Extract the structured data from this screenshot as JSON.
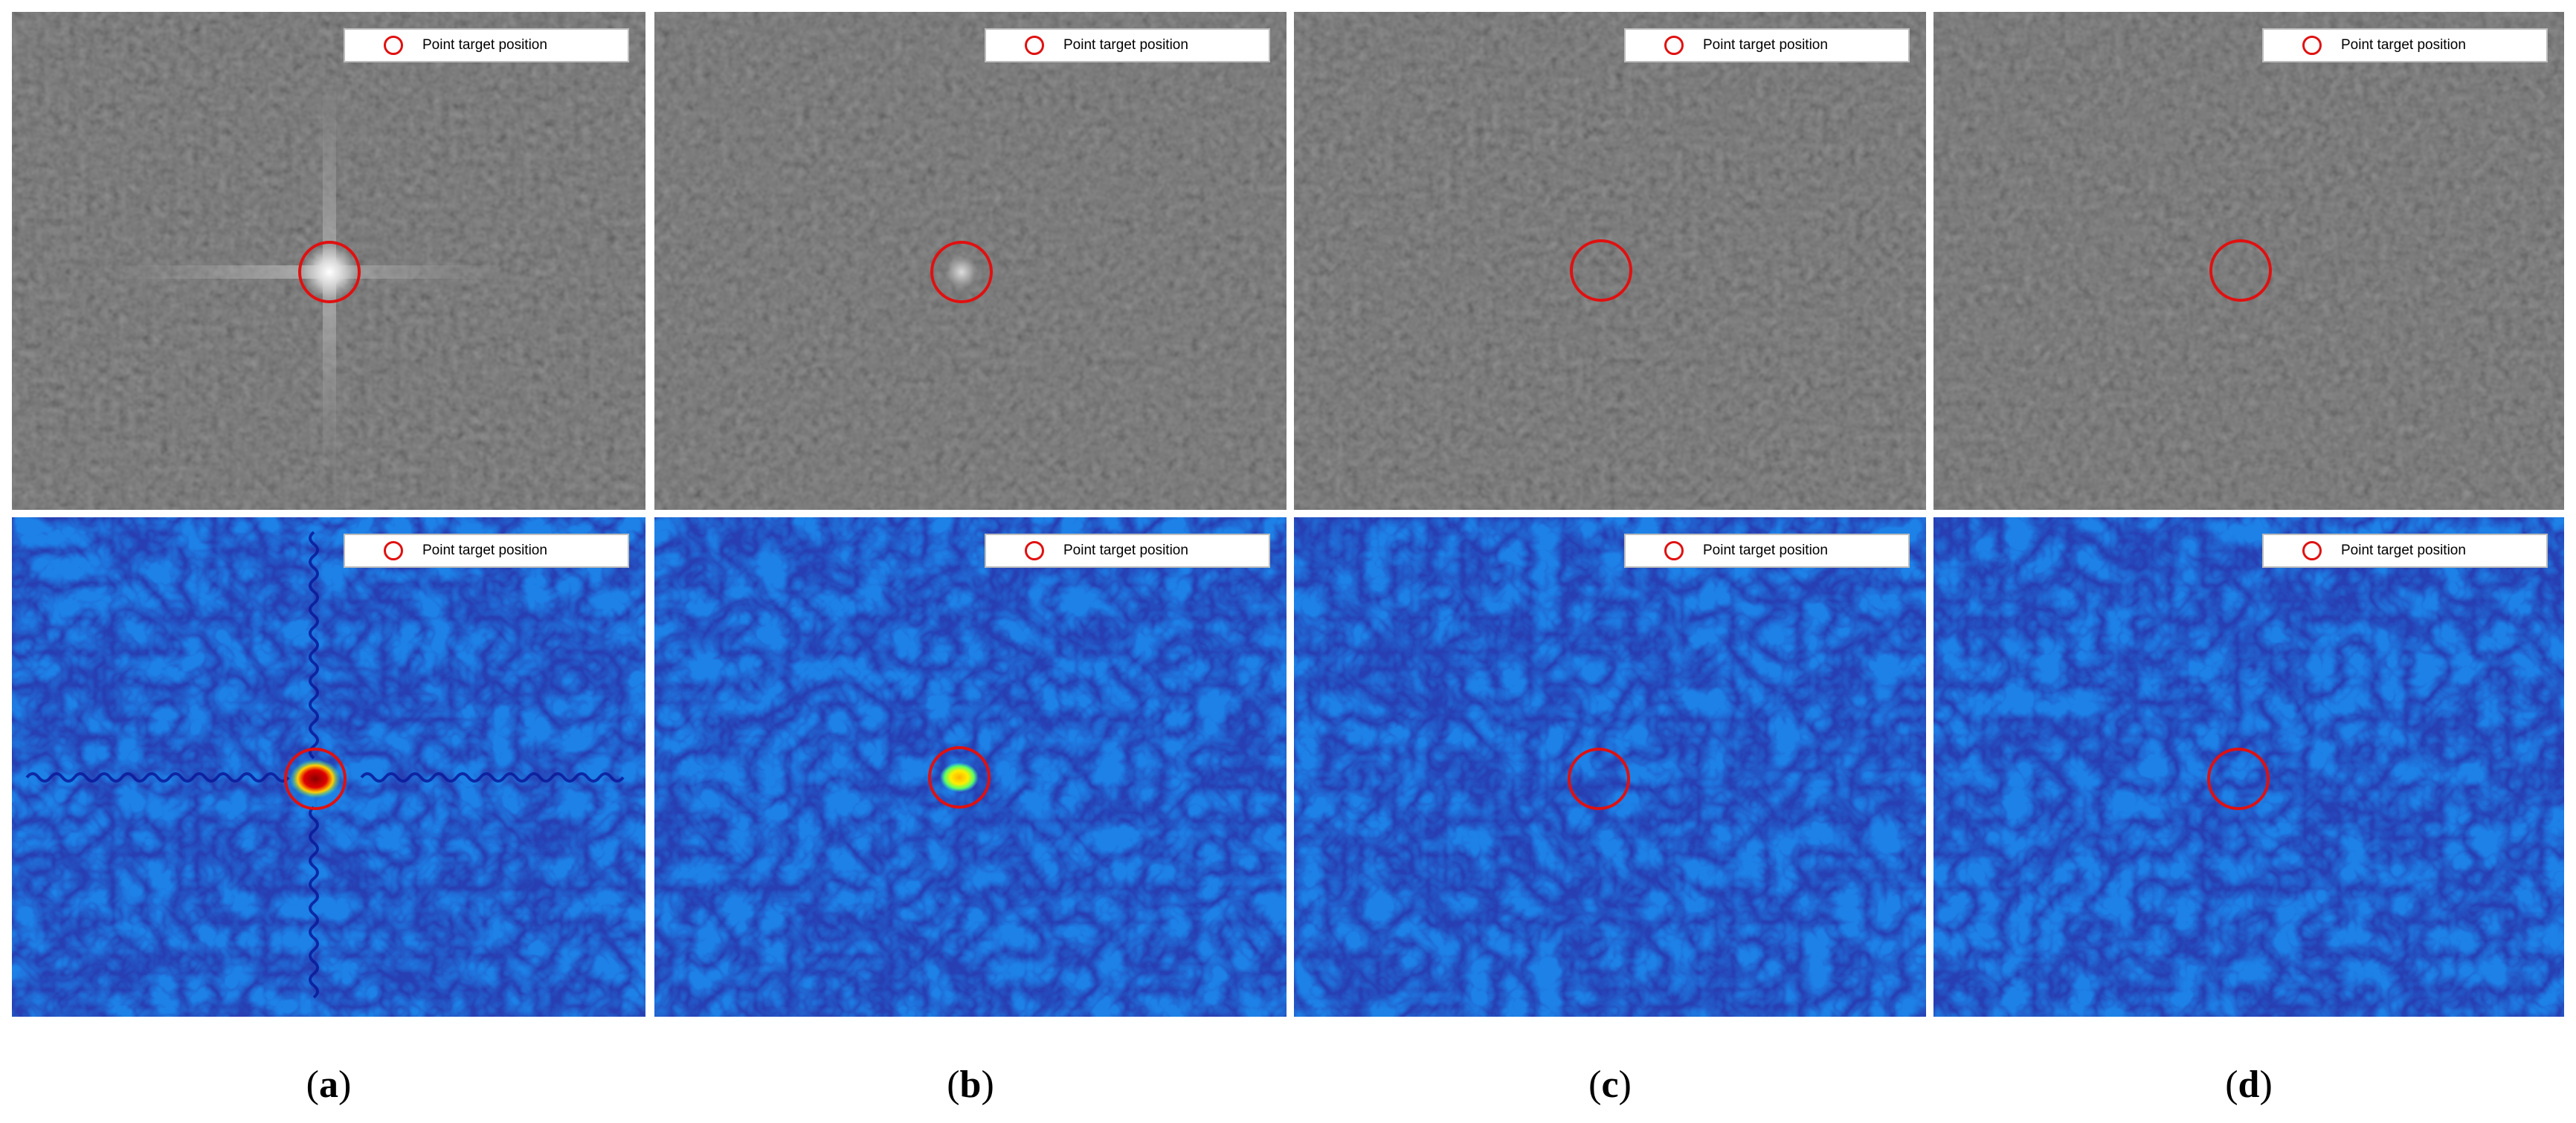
{
  "legend": {
    "label": "Point target position",
    "marker_color": "#e01010",
    "marker_icon": "red-circle-marker"
  },
  "colors": {
    "grayscale_background": "#4a4a4a",
    "jet_background": "#1a7ff0",
    "target_circle": "#e01010"
  },
  "columns": [
    {
      "id": "a",
      "caption_letter": "a",
      "target_strength": 1.0,
      "sidelobes": true,
      "peak_color": "#cc0000"
    },
    {
      "id": "b",
      "caption_letter": "b",
      "target_strength": 0.55,
      "sidelobes": false,
      "peak_color": "#ffe600"
    },
    {
      "id": "c",
      "caption_letter": "c",
      "target_strength": 0.05,
      "sidelobes": false,
      "peak_color": ""
    },
    {
      "id": "d",
      "caption_letter": "d",
      "target_strength": 0.0,
      "sidelobes": false,
      "peak_color": ""
    }
  ],
  "rows": [
    {
      "id": "top",
      "style": "grayscale"
    },
    {
      "id": "bottom",
      "style": "jet-colormap"
    }
  ]
}
